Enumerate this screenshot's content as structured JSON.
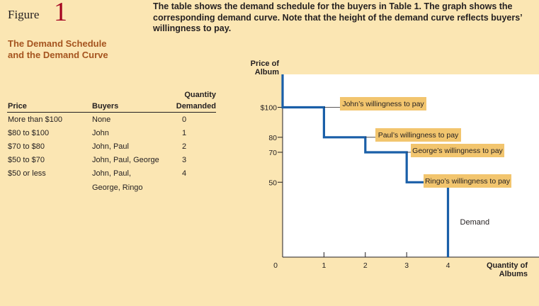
{
  "figure": {
    "word": "Figure",
    "number": "1",
    "title_line1": "The Demand Schedule",
    "title_line2": "and the Demand Curve"
  },
  "caption": "The table shows the demand schedule for the buyers in Table 1. The graph shows the corresponding demand curve. Note that the height of the demand curve reflects buyers’ willingness to pay.",
  "table": {
    "headers": {
      "price": "Price",
      "buyers": "Buyers",
      "quantity_line1": "Quantity",
      "quantity_line2": "Demanded"
    },
    "rows": [
      {
        "price": "More than $100",
        "buyers": "None",
        "quantity": "0"
      },
      {
        "price": "$80 to $100",
        "buyers": "John",
        "quantity": "1"
      },
      {
        "price": "$70 to $80",
        "buyers": "John, Paul",
        "quantity": "2"
      },
      {
        "price": "$50 to $70",
        "buyers": "John, Paul, George",
        "quantity": "3"
      },
      {
        "price": "$50 or less",
        "buyers": "John, Paul,",
        "buyers_line2": "George, Ringo",
        "quantity": "4"
      }
    ]
  },
  "chart_data": {
    "type": "line",
    "step": true,
    "ylabel_line1": "Price of",
    "ylabel_line2": "Album",
    "xlabel_line1": "Quantity of",
    "xlabel_line2": "Albums",
    "x_ticks": [
      0,
      1,
      2,
      3,
      4
    ],
    "x_tick_labels": [
      "0",
      "1",
      "2",
      "3",
      "4"
    ],
    "y_ticks": [
      100,
      80,
      70,
      50
    ],
    "y_tick_labels": [
      "$100",
      "80",
      "70",
      "50"
    ],
    "xlim": [
      0,
      6.2
    ],
    "ylim": [
      0,
      122
    ],
    "series": [
      {
        "name": "Demand",
        "points": [
          [
            0,
            122
          ],
          [
            0,
            100
          ],
          [
            1,
            100
          ],
          [
            1,
            80
          ],
          [
            2,
            80
          ],
          [
            2,
            70
          ],
          [
            3,
            70
          ],
          [
            3,
            50
          ],
          [
            4,
            50
          ],
          [
            4,
            0
          ]
        ],
        "color": "#1a5fa8"
      }
    ],
    "annotations": [
      {
        "text": "John’s willingness to pay",
        "x": 1,
        "y": 100
      },
      {
        "text": "Paul’s willingness to pay",
        "x": 2,
        "y": 80
      },
      {
        "text": "George’s willingness to pay",
        "x": 3,
        "y": 70
      },
      {
        "text": "Ringo’s willingness to pay",
        "x": 4,
        "y": 50
      }
    ],
    "curve_label": "Demand",
    "colors": {
      "box": "#f2c56e",
      "plot": "#ffffff",
      "curve": "#1a5fa8"
    }
  }
}
